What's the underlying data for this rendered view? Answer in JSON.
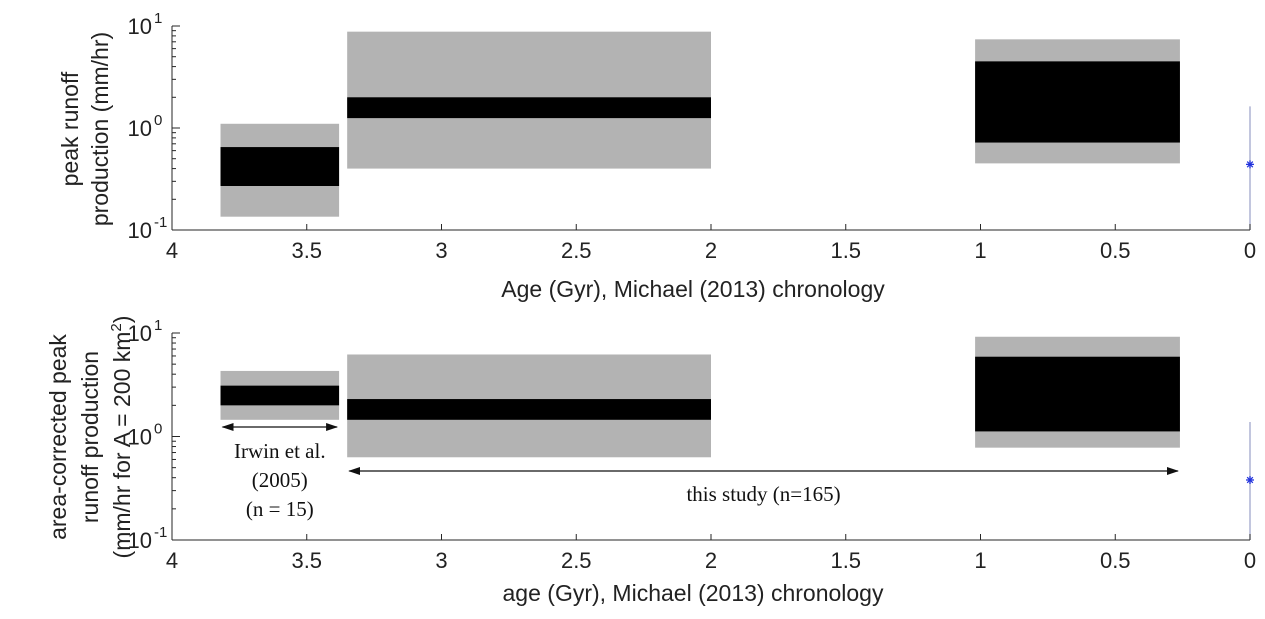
{
  "chart_data": [
    {
      "type": "range-bars",
      "xlabel": "Age (Gyr), Michael (2013) chronology",
      "ylabel_lines": [
        "peak runoff",
        "production (mm/hr)"
      ],
      "xlim": [
        4,
        0
      ],
      "ylim": [
        0.1,
        10
      ],
      "yscale": "log",
      "xticks": [
        4,
        3.5,
        3,
        2.5,
        2,
        1.5,
        1,
        0.5,
        0
      ],
      "xtick_labels": [
        "4",
        "3.5",
        "3",
        "2.5",
        "2",
        "1.5",
        "1",
        "0.5",
        "0"
      ],
      "yticks": [
        {
          "value": 0.1,
          "base": "10",
          "exp": "-1"
        },
        {
          "value": 1,
          "base": "10",
          "exp": "0"
        },
        {
          "value": 10,
          "base": "10",
          "exp": "1"
        }
      ],
      "boxes": [
        {
          "x0": 3.82,
          "x1": 3.38,
          "outer": [
            0.135,
            1.1
          ],
          "inner": [
            0.27,
            0.65
          ]
        },
        {
          "x0": 3.35,
          "x1": 2.0,
          "outer": [
            0.4,
            8.8
          ],
          "inner": [
            1.25,
            2.0
          ]
        },
        {
          "x0": 1.02,
          "x1": 0.26,
          "outer": [
            0.45,
            7.4
          ],
          "inner": [
            0.72,
            4.5
          ]
        }
      ],
      "marker": {
        "x": 0.0,
        "y": 0.44,
        "color": "#2233dd"
      },
      "colors": {
        "outer": "#b3b3b3",
        "inner": "#000000"
      }
    },
    {
      "type": "range-bars",
      "xlabel": "age (Gyr), Michael (2013) chronology",
      "ylabel_lines": [
        "area-corrected peak",
        "runoff production",
        "(mm/hr for A = 200 km",
        "2",
        ")"
      ],
      "xlim": [
        4,
        0
      ],
      "ylim": [
        0.1,
        10
      ],
      "yscale": "log",
      "xticks": [
        4,
        3.5,
        3,
        2.5,
        2,
        1.5,
        1,
        0.5,
        0
      ],
      "xtick_labels": [
        "4",
        "3.5",
        "3",
        "2.5",
        "2",
        "1.5",
        "1",
        "0.5",
        "0"
      ],
      "yticks": [
        {
          "value": 0.1,
          "base": "10",
          "exp": "-1"
        },
        {
          "value": 1,
          "base": "10",
          "exp": "0"
        },
        {
          "value": 10,
          "base": "10",
          "exp": "1"
        }
      ],
      "boxes": [
        {
          "x0": 3.82,
          "x1": 3.38,
          "outer": [
            1.45,
            4.3
          ],
          "inner": [
            2.0,
            3.1
          ]
        },
        {
          "x0": 3.35,
          "x1": 2.0,
          "outer": [
            0.63,
            6.2
          ],
          "inner": [
            1.45,
            2.3
          ]
        },
        {
          "x0": 1.02,
          "x1": 0.26,
          "outer": [
            0.78,
            9.2
          ],
          "inner": [
            1.12,
            5.9
          ]
        }
      ],
      "marker": {
        "x": 0.0,
        "y": 0.38,
        "color": "#2233dd"
      },
      "colors": {
        "outer": "#b3b3b3",
        "inner": "#000000"
      },
      "annotations": [
        {
          "lines": [
            "Irwin et al.",
            "(2005)"
          ],
          "n_label": "(n = 15)",
          "x0": 3.82,
          "x1": 3.38
        },
        {
          "text": "this study (n=165)",
          "x0": 3.35,
          "x1": 0.26
        }
      ]
    }
  ]
}
